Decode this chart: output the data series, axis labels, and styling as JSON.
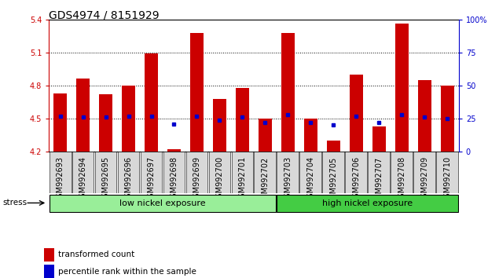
{
  "title": "GDS4974 / 8151929",
  "samples": [
    "GSM992693",
    "GSM992694",
    "GSM992695",
    "GSM992696",
    "GSM992697",
    "GSM992698",
    "GSM992699",
    "GSM992700",
    "GSM992701",
    "GSM992702",
    "GSM992703",
    "GSM992704",
    "GSM992705",
    "GSM992706",
    "GSM992707",
    "GSM992708",
    "GSM992709",
    "GSM992710"
  ],
  "transformed_count": [
    4.73,
    4.86,
    4.72,
    4.8,
    5.09,
    4.22,
    5.28,
    4.68,
    4.78,
    4.5,
    5.28,
    4.5,
    4.3,
    4.9,
    4.43,
    5.36,
    4.85,
    4.8
  ],
  "percentile_rank": [
    27,
    26,
    26,
    27,
    27,
    21,
    27,
    24,
    26,
    22,
    28,
    22,
    20,
    27,
    22,
    28,
    26,
    25
  ],
  "bar_base": 4.2,
  "ylim": [
    4.2,
    5.4
  ],
  "y_ticks_left": [
    4.2,
    4.5,
    4.8,
    5.1,
    5.4
  ],
  "y_ticks_right": [
    0,
    25,
    50,
    75,
    100
  ],
  "right_ylim": [
    0,
    100
  ],
  "bar_color": "#cc0000",
  "dot_color": "#0000cc",
  "low_nickel_group": [
    0,
    9
  ],
  "high_nickel_group": [
    10,
    17
  ],
  "low_label": "low nickel exposure",
  "high_label": "high nickel exposure",
  "stress_label": "stress",
  "low_color": "#99ee99",
  "high_color": "#44cc44",
  "legend_red": "transformed count",
  "legend_blue": "percentile rank within the sample",
  "title_fontsize": 10,
  "tick_fontsize": 7,
  "bar_width": 0.6
}
